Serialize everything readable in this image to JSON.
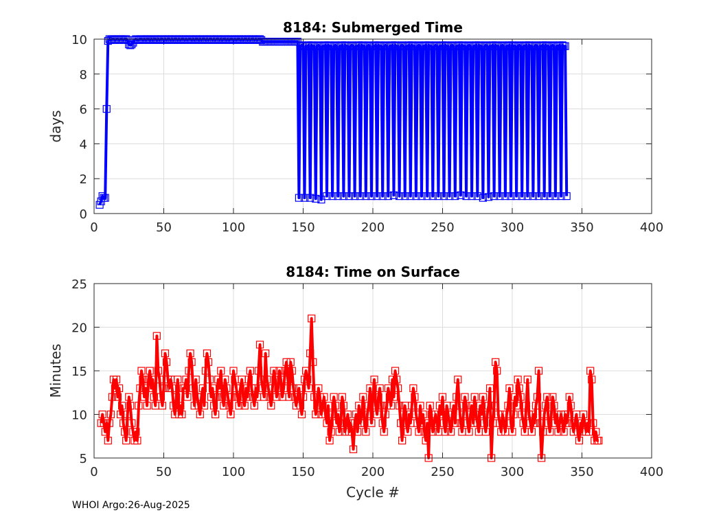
{
  "footer": "WHOI Argo:26-Aug-2025",
  "colors": {
    "top_series": "#0000ff",
    "bottom_series": "#ff0000",
    "grid": "#dcdcdc",
    "axis": "#262626"
  },
  "chart_data": [
    {
      "type": "line",
      "title": "8184: Submerged Time",
      "xlabel": "",
      "ylabel": "days",
      "xlim": [
        0,
        400
      ],
      "ylim": [
        0,
        10
      ],
      "xticks": [
        "0",
        "50",
        "100",
        "150",
        "200",
        "250",
        "300",
        "350",
        "400"
      ],
      "yticks": [
        "0",
        "2",
        "4",
        "6",
        "8",
        "10"
      ],
      "grid": true,
      "marker": "square",
      "x_start": 4,
      "values": [
        0.5,
        0.7,
        1.0,
        0.9,
        0.9,
        6.0,
        9.9,
        10.0,
        9.95,
        10.0,
        10.0,
        9.95,
        10.0,
        10.0,
        9.95,
        10.0,
        10.0,
        9.95,
        10.0,
        10.0,
        9.95,
        9.7,
        9.65,
        9.7,
        9.8,
        9.95,
        10.0,
        9.95,
        9.95,
        10.0,
        10.0,
        9.95,
        10.0,
        9.95,
        10.0,
        10.0,
        9.95,
        10.0,
        9.95,
        10.0,
        10.0,
        9.95,
        10.0,
        9.95,
        10.0,
        10.0,
        9.95,
        10.0,
        9.95,
        10.0,
        10.0,
        9.95,
        10.0,
        9.95,
        10.0,
        10.0,
        9.95,
        10.0,
        9.95,
        10.0,
        10.0,
        9.95,
        10.0,
        9.95,
        10.0,
        10.0,
        9.95,
        10.0,
        9.95,
        10.0,
        10.0,
        9.95,
        10.0,
        9.95,
        10.0,
        10.0,
        9.95,
        10.0,
        9.95,
        10.0,
        10.0,
        9.95,
        10.0,
        9.95,
        10.0,
        10.0,
        9.95,
        10.0,
        9.95,
        10.0,
        10.0,
        9.95,
        10.0,
        9.95,
        10.0,
        10.0,
        9.95,
        10.0,
        9.95,
        10.0,
        10.0,
        9.95,
        10.0,
        9.95,
        10.0,
        10.0,
        9.95,
        10.0,
        9.95,
        10.0,
        10.0,
        9.95,
        10.0,
        9.95,
        10.0,
        10.0,
        9.95,
        9.85,
        9.85,
        9.85,
        9.85,
        9.85,
        9.85,
        9.85,
        9.85,
        9.85,
        9.85,
        9.85,
        9.85,
        9.85,
        9.85,
        9.85,
        9.85,
        9.85,
        9.85,
        9.85,
        9.85,
        9.85,
        9.85,
        9.85,
        9.85,
        9.85,
        9.85,
        0.9,
        9.6,
        9.65,
        9.6,
        0.9,
        9.6,
        9.6,
        9.65,
        0.9,
        9.65,
        9.6,
        9.6,
        0.85,
        9.6,
        9.65,
        9.6,
        0.8,
        9.6,
        9.6,
        9.65,
        1.0,
        9.65,
        9.6,
        9.6,
        1.0,
        9.6,
        9.65,
        9.6,
        1.0,
        9.6,
        9.6,
        9.65,
        1.0,
        9.65,
        9.6,
        9.6,
        1.0,
        9.6,
        9.65,
        9.6,
        1.0,
        9.6,
        9.6,
        9.65,
        1.0,
        9.65,
        9.6,
        9.6,
        1.0,
        9.6,
        9.65,
        9.6,
        1.0,
        9.6,
        9.6,
        9.65,
        1.0,
        9.65,
        9.6,
        9.6,
        1.0,
        9.6,
        9.65,
        9.6,
        1.0,
        9.6,
        9.6,
        9.65,
        1.05,
        9.65,
        9.6,
        9.6,
        1.0,
        9.6,
        9.65,
        9.6,
        1.0,
        9.6,
        9.6,
        9.65,
        1.0,
        9.65,
        9.6,
        9.6,
        1.0,
        9.6,
        9.65,
        9.6,
        1.0,
        9.6,
        9.6,
        9.65,
        1.0,
        9.65,
        9.6,
        9.6,
        1.0,
        9.6,
        9.65,
        9.6,
        1.0,
        9.6,
        9.6,
        9.65,
        1.0,
        9.65,
        9.6,
        9.6,
        1.0,
        9.6,
        9.65,
        9.6,
        1.0,
        9.6,
        9.6,
        9.65,
        1.05,
        9.65,
        9.6,
        9.6,
        1.0,
        9.6,
        9.65,
        9.6,
        1.0,
        9.6,
        9.6,
        9.65,
        1.0,
        9.65,
        9.6,
        9.6,
        0.9,
        9.6,
        9.65,
        9.6,
        0.95,
        9.6,
        9.6,
        9.65,
        1.0,
        9.65,
        9.6,
        9.6,
        1.0,
        9.6,
        9.65,
        9.6,
        1.0,
        9.6,
        9.6,
        9.65,
        1.0,
        9.65,
        9.6,
        9.6,
        1.0,
        9.6,
        9.65,
        9.6,
        1.0,
        9.6,
        9.6,
        9.65,
        1.0,
        9.65,
        9.6,
        9.6,
        1.0,
        9.6,
        9.65,
        9.6,
        1.0,
        9.6,
        9.6,
        9.65,
        1.0,
        9.65,
        9.6,
        9.6,
        1.0,
        9.6,
        9.65,
        9.6,
        1.0,
        9.6,
        9.6,
        9.65,
        1.0,
        9.65,
        9.6,
        9.6,
        1.0
      ]
    },
    {
      "type": "line",
      "title": "8184: Time on Surface",
      "xlabel": "Cycle #",
      "ylabel": "Minutes",
      "xlim": [
        0,
        400
      ],
      "ylim": [
        5,
        25
      ],
      "xticks": [
        "0",
        "50",
        "100",
        "150",
        "200",
        "250",
        "300",
        "350",
        "400"
      ],
      "yticks": [
        "5",
        "10",
        "15",
        "20",
        "25"
      ],
      "grid": true,
      "marker": "square",
      "x_start": 5,
      "values": [
        9,
        10,
        9,
        8,
        9,
        7,
        9,
        10,
        12,
        14,
        13,
        14,
        12,
        13,
        10,
        11,
        9,
        8,
        7,
        10,
        12,
        11,
        9,
        8,
        7,
        8,
        7,
        11,
        13,
        15,
        14,
        12,
        13,
        11,
        14,
        15,
        13,
        14,
        12,
        11,
        19,
        15,
        14,
        12,
        11,
        13,
        17,
        16,
        14,
        13,
        14,
        13,
        11,
        10,
        12,
        14,
        10,
        11,
        10,
        13,
        13,
        14,
        12,
        15,
        17,
        16,
        13,
        11,
        14,
        12,
        11,
        10,
        12,
        13,
        11,
        15,
        17,
        16,
        14,
        12,
        13,
        11,
        10,
        12,
        14,
        13,
        15,
        12,
        11,
        14,
        13,
        12,
        11,
        10,
        12,
        15,
        14,
        13,
        12,
        11,
        13,
        14,
        12,
        11,
        13,
        12,
        14,
        15,
        13,
        12,
        11,
        13,
        12,
        15,
        18,
        14,
        13,
        12,
        17,
        14,
        13,
        12,
        11,
        13,
        15,
        14,
        12,
        13,
        15,
        14,
        12,
        13,
        15,
        16,
        14,
        12,
        16,
        15,
        13,
        12,
        11,
        12,
        13,
        11,
        10,
        12,
        14,
        15,
        14,
        13,
        17,
        21,
        16,
        12,
        10,
        11,
        13,
        12,
        10,
        11,
        12,
        10,
        9,
        11,
        7,
        8,
        10,
        12,
        11,
        9,
        10,
        8,
        9,
        12,
        11,
        8,
        9,
        10,
        8,
        9,
        8,
        6,
        9,
        10,
        8,
        11,
        9,
        10,
        12,
        9,
        8,
        10,
        11,
        13,
        9,
        12,
        14,
        11,
        10,
        12,
        13,
        11,
        9,
        8,
        10,
        11,
        13,
        12,
        11,
        14,
        12,
        15,
        14,
        13,
        11,
        9,
        7,
        10,
        11,
        9,
        8,
        10,
        9,
        11,
        13,
        12,
        10,
        9,
        8,
        11,
        9,
        10,
        8,
        7,
        9,
        5,
        11,
        10,
        8,
        9,
        10,
        9,
        8,
        11,
        10,
        12,
        9,
        8,
        11,
        10,
        9,
        8,
        10,
        11,
        9,
        12,
        14,
        11,
        9,
        8,
        10,
        12,
        11,
        9,
        8,
        10,
        11,
        9,
        12,
        10,
        9,
        8,
        11,
        10,
        12,
        9,
        8,
        10,
        11,
        13,
        5,
        9,
        11,
        16,
        15,
        10,
        9,
        8,
        10,
        9,
        8,
        10,
        11,
        13,
        9,
        8,
        10,
        12,
        11,
        14,
        13,
        12,
        10,
        9,
        8,
        11,
        14,
        10,
        9,
        8,
        10,
        9,
        11,
        12,
        15,
        9,
        5,
        8,
        10,
        11,
        12,
        9,
        8,
        10,
        12,
        11,
        9,
        10,
        8,
        9,
        10,
        9,
        8,
        10,
        9,
        10,
        12,
        11,
        9,
        8,
        9,
        10,
        8,
        7,
        9,
        8,
        10,
        9,
        8,
        9,
        8,
        15,
        14,
        9,
        7,
        8,
        7,
        7
      ]
    }
  ]
}
